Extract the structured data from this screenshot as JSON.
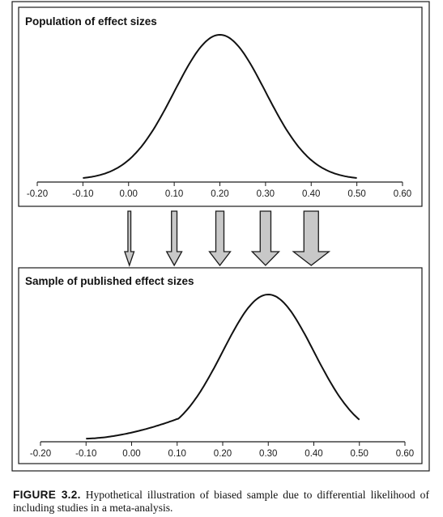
{
  "caption": {
    "label": "FIGURE 3.2.",
    "text": "Hypothetical illustration of biased sample due to differential likelihood of including studies in a meta-analysis."
  },
  "arrow_color": "#c8c8c8",
  "chart_data": [
    {
      "type": "line",
      "title": "Population of effect sizes",
      "x_ticks": [
        "-0.20",
        "-0.10",
        "0.00",
        "0.10",
        "0.20",
        "0.30",
        "0.40",
        "0.50",
        "0.60"
      ],
      "xlim": [
        -0.2,
        0.6
      ],
      "curve": {
        "shape": "normal",
        "mean": 0.2,
        "sd": 0.1,
        "x_range": [
          -0.1,
          0.5
        ]
      },
      "grid": false
    },
    {
      "type": "line",
      "title": "Sample of published effect sizes",
      "x_ticks": [
        "-0.20",
        "-0.10",
        "0.00",
        "0.10",
        "0.20",
        "0.30",
        "0.40",
        "0.50",
        "0.60"
      ],
      "xlim": [
        -0.2,
        0.6
      ],
      "curve": {
        "shape": "normal-weighted",
        "mean": 0.3,
        "sd": 0.1,
        "x_range": [
          -0.1,
          0.5
        ]
      },
      "grid": false
    }
  ],
  "arrows": [
    {
      "x": 0.0,
      "width": 0.1
    },
    {
      "x": 0.1,
      "width": 0.3
    },
    {
      "x": 0.2,
      "width": 0.5
    },
    {
      "x": 0.3,
      "width": 0.7
    },
    {
      "x": 0.4,
      "width": 1.0
    }
  ]
}
